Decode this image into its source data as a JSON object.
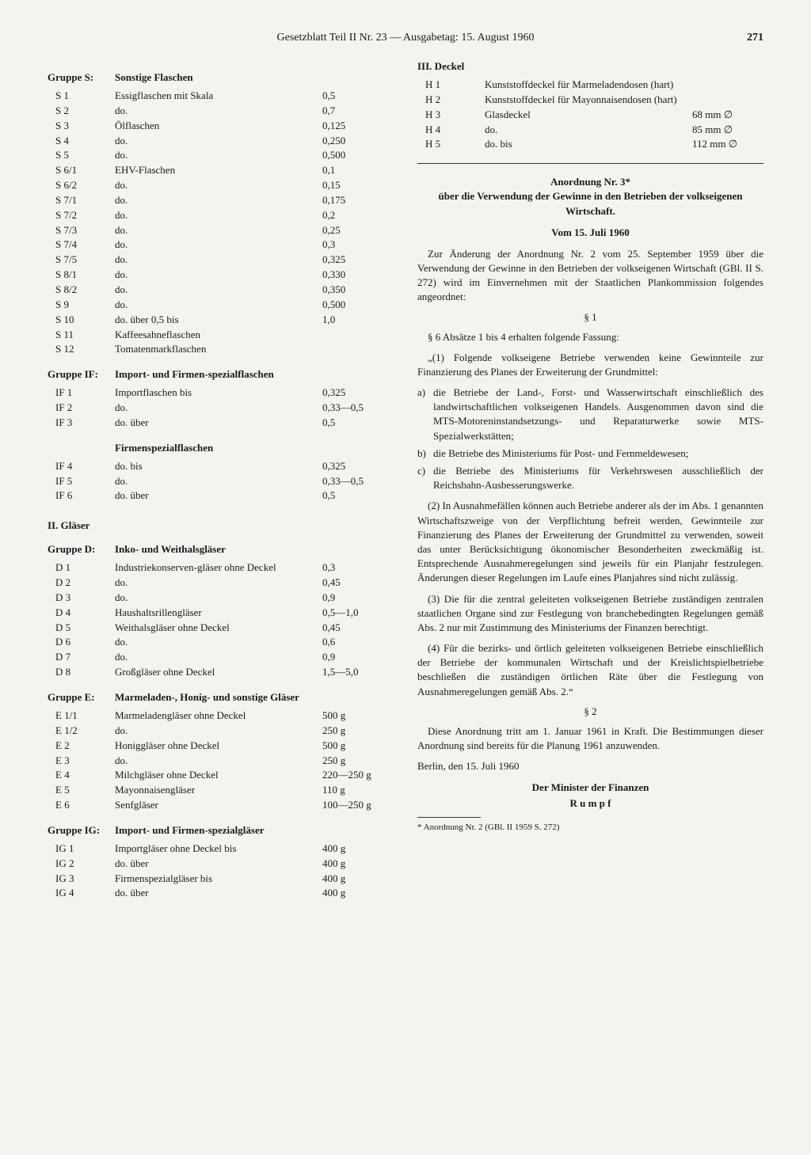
{
  "header": {
    "text": "Gesetzblatt Teil II Nr. 23 — Ausgabetag: 15. August 1960",
    "page": "271"
  },
  "left": {
    "groupS": {
      "label": "Gruppe S:",
      "title": "Sonstige Flaschen",
      "rows": [
        {
          "code": "S 1",
          "desc": "Essigflaschen mit Skala",
          "val": "0,5"
        },
        {
          "code": "S 2",
          "desc": "do.",
          "val": "0,7"
        },
        {
          "code": "S 3",
          "desc": "Ölflaschen",
          "val": "0,125"
        },
        {
          "code": "S 4",
          "desc": "do.",
          "val": "0,250"
        },
        {
          "code": "S 5",
          "desc": "do.",
          "val": "0,500"
        },
        {
          "code": "S 6/1",
          "desc": "EHV-Flaschen",
          "val": "0,1"
        },
        {
          "code": "S 6/2",
          "desc": "do.",
          "val": "0,15"
        },
        {
          "code": "S 7/1",
          "desc": "do.",
          "val": "0,175"
        },
        {
          "code": "S 7/2",
          "desc": "do.",
          "val": "0,2"
        },
        {
          "code": "S 7/3",
          "desc": "do.",
          "val": "0,25"
        },
        {
          "code": "S 7/4",
          "desc": "do.",
          "val": "0,3"
        },
        {
          "code": "S 7/5",
          "desc": "do.",
          "val": "0,325"
        },
        {
          "code": "S 8/1",
          "desc": "do.",
          "val": "0,330"
        },
        {
          "code": "S 8/2",
          "desc": "do.",
          "val": "0,350"
        },
        {
          "code": "S 9",
          "desc": "do.",
          "val": "0,500"
        },
        {
          "code": "S 10",
          "desc": "do. über 0,5 bis",
          "val": "1,0"
        },
        {
          "code": "S 11",
          "desc": "Kaffeesahneflaschen",
          "val": ""
        },
        {
          "code": "S 12",
          "desc": "Tomatenmarkflaschen",
          "val": ""
        }
      ]
    },
    "groupIF": {
      "label": "Gruppe IF:",
      "title": "Import- und Firmen-spezialflaschen",
      "rowsA": [
        {
          "code": "IF 1",
          "desc": "Importflaschen bis",
          "val": "0,325"
        },
        {
          "code": "IF 2",
          "desc": "do.",
          "val": "0,33—0,5"
        },
        {
          "code": "IF 3",
          "desc": "do. über",
          "val": "0,5"
        }
      ],
      "subhead": "Firmenspezialflaschen",
      "rowsB": [
        {
          "code": "IF 4",
          "desc": "do. bis",
          "val": "0,325"
        },
        {
          "code": "IF 5",
          "desc": "do.",
          "val": "0,33—0,5"
        },
        {
          "code": "IF 6",
          "desc": "do. über",
          "val": "0,5"
        }
      ]
    },
    "sec2": "II. Gläser",
    "groupD": {
      "label": "Gruppe D:",
      "title": "Inko- und Weithalsgläser",
      "rows": [
        {
          "code": "D 1",
          "desc": "Industriekonserven-gläser ohne Deckel",
          "val": "0,3"
        },
        {
          "code": "D 2",
          "desc": "do.",
          "val": "0,45"
        },
        {
          "code": "D 3",
          "desc": "do.",
          "val": "0,9"
        },
        {
          "code": "D 4",
          "desc": "Haushaltsrillengläser",
          "val": "0,5—1,0"
        },
        {
          "code": "D 5",
          "desc": "Weithalsgläser ohne Deckel",
          "val": "0,45"
        },
        {
          "code": "D 6",
          "desc": "do.",
          "val": "0,6"
        },
        {
          "code": "D 7",
          "desc": "do.",
          "val": "0,9"
        },
        {
          "code": "D 8",
          "desc": "Großgläser ohne Deckel",
          "val": "1,5—5,0"
        }
      ]
    },
    "groupE": {
      "label": "Gruppe E:",
      "title": "Marmeladen-, Honig- und sonstige Gläser",
      "rows": [
        {
          "code": "E 1/1",
          "desc": "Marmeladengläser ohne Deckel",
          "val": "500 g"
        },
        {
          "code": "E 1/2",
          "desc": "do.",
          "val": "250 g"
        },
        {
          "code": "E 2",
          "desc": "Honiggläser ohne Deckel",
          "val": "500 g"
        },
        {
          "code": "E 3",
          "desc": "do.",
          "val": "250 g"
        },
        {
          "code": "E 4",
          "desc": "Milchgläser ohne Deckel",
          "val": "220—250 g"
        },
        {
          "code": "E 5",
          "desc": "Mayonnaisengläser",
          "val": "110 g"
        },
        {
          "code": "E 6",
          "desc": "Senfgläser",
          "val": "100—250 g"
        }
      ]
    },
    "groupIG": {
      "label": "Gruppe IG:",
      "title": "Import- und Firmen-spezialgläser",
      "rows": [
        {
          "code": "IG 1",
          "desc": "Importgläser ohne Deckel bis",
          "val": "400 g"
        },
        {
          "code": "IG 2",
          "desc": "do. über",
          "val": "400 g"
        },
        {
          "code": "IG 3",
          "desc": "Firmenspezialgläser bis",
          "val": "400 g"
        },
        {
          "code": "IG 4",
          "desc": "do. über",
          "val": "400 g"
        }
      ]
    }
  },
  "right": {
    "sec3": "III. Deckel",
    "rows3": [
      {
        "code": "H 1",
        "desc": "Kunststoffdeckel für Marmeladendosen (hart)",
        "val": ""
      },
      {
        "code": "H 2",
        "desc": "Kunststoffdeckel für Mayonnaisendosen (hart)",
        "val": ""
      },
      {
        "code": "H 3",
        "desc": "Glasdeckel",
        "val": "68 mm ∅"
      },
      {
        "code": "H 4",
        "desc": "do.",
        "val": "85 mm ∅"
      },
      {
        "code": "H 5",
        "desc": "do. bis",
        "val": "112 mm ∅"
      }
    ],
    "ord": {
      "title1": "Anordnung Nr. 3*",
      "title2": "über die Verwendung der Gewinne in den Betrieben der volkseigenen Wirtschaft.",
      "date": "Vom 15. Juli 1960",
      "intro": "Zur Änderung der Anordnung Nr. 2 vom 25. September 1959 über die Verwendung der Gewinne in den Betrieben der volkseigenen Wirtschaft (GBl. II S. 272) wird im Einvernehmen mit der Staatlichen Plankommission folgendes angeordnet:",
      "s1": "§ 1",
      "s1lead": "§ 6 Absätze 1 bis 4 erhalten folgende Fassung:",
      "p1": "„(1) Folgende volkseigene Betriebe verwenden keine Gewinnteile zur Finanzierung des Planes der Erweiterung der Grundmittel:",
      "items": [
        {
          "b": "a)",
          "t": "die Betriebe der Land-, Forst- und Wasserwirtschaft einschließlich des landwirtschaftlichen volkseigenen Handels. Ausgenommen davon sind die MTS-Motoreninstandsetzungs- und Reparaturwerke sowie MTS-Spezialwerkstätten;"
        },
        {
          "b": "b)",
          "t": "die Betriebe des Ministeriums für Post- und Fernmeldewesen;"
        },
        {
          "b": "c)",
          "t": "die Betriebe des Ministeriums für Verkehrswesen ausschließlich der Reichsbahn-Ausbesserungswerke."
        }
      ],
      "p2": "(2) In Ausnahmefällen können auch Betriebe anderer als der im Abs. 1 genannten Wirtschaftszweige von der Verpflichtung befreit werden, Gewinnteile zur Finanzierung des Planes der Erweiterung der Grundmittel zu verwenden, soweit das unter Berücksichtigung ökonomischer Besonderheiten zweckmäßig ist. Entsprechende Ausnahmeregelungen sind jeweils für ein Planjahr festzulegen. Änderungen dieser Regelungen im Laufe eines Planjahres sind nicht zulässig.",
      "p3": "(3) Die für die zentral geleiteten volkseigenen Betriebe zuständigen zentralen staatlichen Organe sind zur Festlegung von branchebedingten Regelungen gemäß Abs. 2 nur mit Zustimmung des Ministeriums der Finanzen berechtigt.",
      "p4": "(4) Für die bezirks- und örtlich geleiteten volkseigenen Betriebe einschließlich der Betriebe der kommunalen Wirtschaft und der Kreislichtspielbetriebe beschließen die zuständigen örtlichen Räte über die Festlegung von Ausnahmeregelungen gemäß Abs. 2.“",
      "s2": "§ 2",
      "p5": "Diese Anordnung tritt am 1. Januar 1961 in Kraft. Die Bestimmungen dieser Anordnung sind bereits für die Planung 1961 anzuwenden.",
      "place": "Berlin, den 15. Juli 1960",
      "sig1": "Der Minister der Finanzen",
      "sig2": "R u m p f",
      "footnote": "* Anordnung Nr. 2 (GBl. II 1959 S. 272)"
    }
  }
}
